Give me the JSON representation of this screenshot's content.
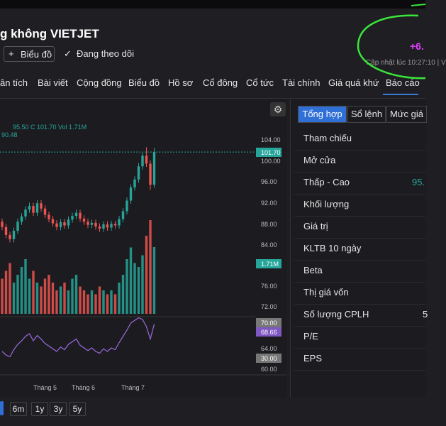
{
  "header": {
    "title": "g không VIETJET",
    "buttons": [
      "Biểu đồ",
      "Đang theo dõi"
    ],
    "change": "+6.",
    "updated": "Cập nhật lúc  10:27:10 | V"
  },
  "nav": [
    "ân tích",
    "Bài viết",
    "Cộng đồng",
    "Biểu đồ",
    "Hồ sơ",
    "Cổ đông",
    "Cổ tức",
    "Tài chính",
    "Giá quá khứ",
    "Báo cáo"
  ],
  "chart": {
    "legend": "95.50  C 101.70  Vol 1.71M",
    "ma": "90.48",
    "axis_labels": [
      "104.00",
      "100.00",
      "96.00",
      "92.00",
      "88.00",
      "84.00",
      "76.00",
      "72.00",
      "64.00",
      "60.00"
    ],
    "last_price": "101.70",
    "last_volume": "1.71M",
    "rsi_upper": "70.00",
    "rsi_value": "68.66",
    "rsi_lower": "30.00",
    "months": [
      "Tháng 5",
      "Tháng 6",
      "Tháng 7"
    ],
    "open": [
      88.5,
      87.5,
      86,
      85.2,
      86.8,
      88.5,
      89.5,
      90.8,
      91.5,
      90.2,
      92,
      91,
      89.8,
      89,
      88.2,
      87.5,
      88.4,
      87.8,
      88.9,
      89.6,
      90.2,
      89.1,
      88.5,
      87.9,
      88.3,
      87.6,
      87.2,
      88,
      87.4,
      88.1,
      87.8,
      89,
      90.5,
      92.5,
      95,
      96.5,
      99,
      101,
      99.5,
      95.5
    ],
    "high": [
      89.1,
      88.1,
      86.6,
      87.4,
      89.1,
      90.1,
      91.4,
      92.1,
      92.1,
      92.6,
      92.6,
      91.6,
      90.4,
      89.6,
      88.8,
      89,
      89,
      89.5,
      90.2,
      90.8,
      90.8,
      89.7,
      89.1,
      88.9,
      88.9,
      88.2,
      88.6,
      88.6,
      88.7,
      88.7,
      89.6,
      91.1,
      93.1,
      95.6,
      97.1,
      99.6,
      101.6,
      102.6,
      100.1,
      102.5
    ],
    "low": [
      86.9,
      85.4,
      84.6,
      84.6,
      86.2,
      87.9,
      88.9,
      90.2,
      89.6,
      89.6,
      90.4,
      89.2,
      88.4,
      87.6,
      86.9,
      86.9,
      87.2,
      87.2,
      88.3,
      89,
      88.5,
      87.9,
      87.3,
      87.3,
      87,
      86.6,
      86.6,
      86.8,
      86.8,
      87.2,
      87.2,
      88.4,
      89.9,
      91.9,
      94.4,
      95.9,
      98.4,
      98.9,
      94.5,
      94.9
    ],
    "close": [
      87.5,
      86,
      85.2,
      86.8,
      88.5,
      89.5,
      90.8,
      91.5,
      90.2,
      92,
      91,
      89.8,
      89,
      88.2,
      87.5,
      88.4,
      87.8,
      88.9,
      89.6,
      90.2,
      89.1,
      88.5,
      87.9,
      88.3,
      87.6,
      87.2,
      88,
      87.4,
      88.1,
      87.8,
      89,
      90.5,
      92.5,
      95,
      96.5,
      99,
      101,
      99.5,
      95.5,
      101.7
    ],
    "volume": [
      0.9,
      1.1,
      1.3,
      0.8,
      1.0,
      1.2,
      1.4,
      0.9,
      1.1,
      0.8,
      0.7,
      0.9,
      1.0,
      0.8,
      0.6,
      0.7,
      0.8,
      0.6,
      0.9,
      1.0,
      0.7,
      0.6,
      0.5,
      0.6,
      0.5,
      0.7,
      0.6,
      0.5,
      0.6,
      0.5,
      0.8,
      1.0,
      1.4,
      1.7,
      1.3,
      1.2,
      1.5,
      2.0,
      2.4,
      1.71
    ],
    "rsi": [
      38,
      34,
      32,
      40,
      46,
      50,
      55,
      58,
      50,
      56,
      52,
      47,
      44,
      41,
      38,
      43,
      40,
      46,
      49,
      52,
      45,
      42,
      39,
      42,
      38,
      36,
      41,
      38,
      42,
      40,
      48,
      55,
      62,
      70,
      73,
      76,
      74,
      66,
      52,
      68.66
    ],
    "periods": [
      "6m",
      "1y",
      "3y",
      "5y"
    ]
  },
  "panel": {
    "tabs": [
      "Tổng hợp",
      "Sổ lệnh",
      "Mức giá"
    ],
    "rows": [
      {
        "label": "Tham chiếu"
      },
      {
        "label": "Mở cửa"
      },
      {
        "label": "Thấp - Cao",
        "value": "95."
      },
      {
        "label": "Khối lượng"
      },
      {
        "label": "Giá trị"
      },
      {
        "label": "KLTB 10 ngày"
      },
      {
        "label": "Beta"
      },
      {
        "label": "Thị giá vốn"
      },
      {
        "label": "Số lượng CPLH",
        "value": "5"
      },
      {
        "label": "P/E"
      },
      {
        "label": "EPS"
      }
    ]
  }
}
